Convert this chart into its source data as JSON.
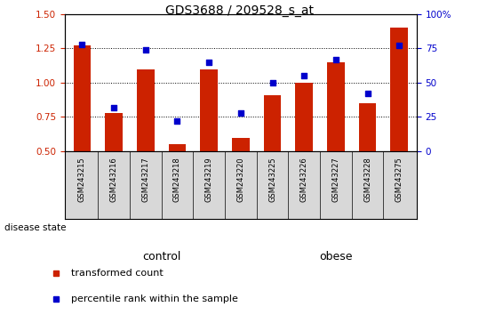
{
  "title": "GDS3688 / 209528_s_at",
  "samples": [
    "GSM243215",
    "GSM243216",
    "GSM243217",
    "GSM243218",
    "GSM243219",
    "GSM243220",
    "GSM243225",
    "GSM243226",
    "GSM243227",
    "GSM243228",
    "GSM243275"
  ],
  "transformed_count": [
    1.27,
    0.78,
    1.1,
    0.55,
    1.1,
    0.6,
    0.91,
    1.0,
    1.15,
    0.85,
    1.4
  ],
  "percentile_rank": [
    78,
    32,
    74,
    22,
    65,
    28,
    50,
    55,
    67,
    42,
    77
  ],
  "bar_color": "#cc2200",
  "dot_color": "#0000cc",
  "ylim_left": [
    0.5,
    1.5
  ],
  "ylim_right": [
    0,
    100
  ],
  "yticks_left": [
    0.5,
    0.75,
    1.0,
    1.25,
    1.5
  ],
  "yticks_right": [
    0,
    25,
    50,
    75,
    100
  ],
  "ytick_labels_right": [
    "0",
    "25",
    "50",
    "75",
    "100%"
  ],
  "groups": [
    {
      "label": "control",
      "start": 0,
      "end": 6,
      "color": "#bbffbb"
    },
    {
      "label": "obese",
      "start": 6,
      "end": 11,
      "color": "#44dd44"
    }
  ],
  "disease_state_label": "disease state",
  "legend": [
    {
      "label": "transformed count",
      "color": "#cc2200"
    },
    {
      "label": "percentile rank within the sample",
      "color": "#0000cc"
    }
  ],
  "grid_color": "black",
  "label_bg_color": "#d8d8d8",
  "plot_bg": "white",
  "title_fontsize": 10,
  "tick_label_fontsize": 7.5,
  "bar_width": 0.55,
  "xlim": [
    -0.55,
    10.55
  ]
}
